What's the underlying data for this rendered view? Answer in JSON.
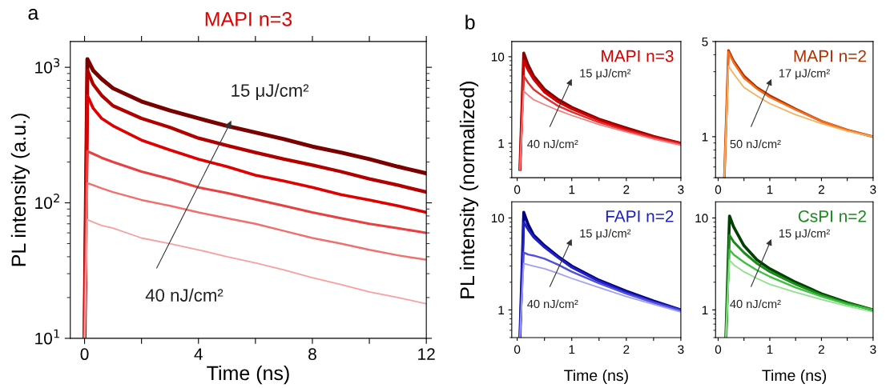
{
  "chart_data": [
    {
      "type": "line",
      "title": "MAPI n=3",
      "xlabel": "Time (ns)",
      "ylabel": "PL intensity (a.u.)",
      "log": "y",
      "xlim": [
        -0.5,
        12
      ],
      "ylim": [
        10,
        1550
      ],
      "xticks": [
        0,
        {
          "value": 2,
          "label": null
        },
        4,
        {
          "value": 6,
          "label": null
        },
        8,
        {
          "value": 10,
          "label": null
        },
        12
      ],
      "yticks": [
        {
          "value": 10,
          "label": "10$^{1}$"
        },
        {
          "value": 100,
          "label": "10$^{2}$"
        },
        {
          "value": 1000,
          "label": "10$^{3}$"
        }
      ],
      "annotations": [
        "a",
        "15 μJ/cm²",
        "40 nJ/cm²"
      ],
      "x": [
        0,
        0.1,
        0.3,
        0.6,
        1,
        2,
        3,
        4,
        5,
        6,
        7,
        8,
        9,
        10,
        11,
        12
      ],
      "series": [
        {
          "color": "#7a0000",
          "values": [
            10,
            1150,
            950,
            820,
            700,
            560,
            480,
            420,
            370,
            330,
            295,
            260,
            235,
            210,
            185,
            165
          ]
        },
        {
          "color": "#b00000",
          "values": [
            10,
            950,
            750,
            620,
            520,
            420,
            360,
            300,
            265,
            235,
            210,
            190,
            170,
            150,
            135,
            120
          ]
        },
        {
          "color": "#e00000",
          "values": [
            10,
            620,
            500,
            420,
            370,
            290,
            245,
            210,
            185,
            160,
            145,
            130,
            115,
            105,
            95,
            85
          ]
        },
        {
          "color": "#e84040",
          "values": [
            10,
            240,
            230,
            215,
            200,
            170,
            150,
            130,
            118,
            106,
            95,
            85,
            77,
            70,
            65,
            60
          ]
        },
        {
          "color": "#f07070",
          "values": [
            10,
            140,
            135,
            128,
            120,
            105,
            95,
            85,
            77,
            70,
            62,
            55,
            50,
            45,
            41,
            38
          ]
        },
        {
          "color": "#f8a0a0",
          "values": [
            10,
            75,
            72,
            68,
            65,
            55,
            50,
            45,
            40,
            36,
            32,
            28,
            25,
            22,
            20,
            18
          ]
        }
      ]
    },
    {
      "type": "line",
      "title": "MAPI n=3",
      "ylabel": "PL intensity (normalized)",
      "log": "y",
      "xlim": [
        -0.1,
        3
      ],
      "ylim": [
        0.4,
        15
      ],
      "xticks": [
        0,
        {
          "value": 0.5,
          "label": null
        },
        1,
        {
          "value": 1.5,
          "label": null
        },
        2,
        {
          "value": 2.5,
          "label": null
        },
        3
      ],
      "yticks": [
        1,
        10
      ],
      "annotations": [
        "b",
        "15 μJ/cm²",
        "40 nJ/cm²"
      ],
      "x": [
        0.05,
        0.12,
        0.2,
        0.3,
        0.5,
        0.75,
        1,
        1.5,
        2,
        2.5,
        3
      ],
      "series": [
        {
          "color": "#8b0000",
          "values": [
            0.5,
            11,
            8,
            6,
            4.2,
            3.2,
            2.6,
            1.9,
            1.5,
            1.2,
            1.0
          ]
        },
        {
          "color": "#d00000",
          "values": [
            0.5,
            9,
            7,
            5.5,
            3.9,
            3.0,
            2.5,
            1.85,
            1.45,
            1.18,
            1.0
          ]
        },
        {
          "color": "#e03030",
          "values": [
            0.5,
            6,
            5,
            4.2,
            3.4,
            2.7,
            2.3,
            1.75,
            1.4,
            1.15,
            0.98
          ]
        },
        {
          "color": "#f08080",
          "values": [
            0.5,
            4,
            3.6,
            3.2,
            2.8,
            2.4,
            2.1,
            1.65,
            1.35,
            1.12,
            0.95
          ]
        }
      ]
    },
    {
      "type": "line",
      "title": "MAPI n=2",
      "log": "y",
      "xlim": [
        -0.05,
        3
      ],
      "ylim": [
        0.5,
        5
      ],
      "xticks": [
        0,
        {
          "value": 0.5,
          "label": null
        },
        1,
        {
          "value": 1.5,
          "label": null
        },
        2,
        {
          "value": 2.5,
          "label": null
        },
        3
      ],
      "yticks": [
        1,
        5
      ],
      "annotations": [
        "17 μJ/cm²",
        "50 nJ/cm²"
      ],
      "x": [
        0.12,
        0.2,
        0.3,
        0.5,
        0.75,
        1,
        1.5,
        2,
        2.5,
        3
      ],
      "series": [
        {
          "color": "#b03000",
          "values": [
            0.5,
            4.3,
            3.6,
            2.8,
            2.3,
            2.0,
            1.6,
            1.3,
            1.12,
            1.0
          ]
        },
        {
          "color": "#f07020",
          "values": [
            0.5,
            4.2,
            3.5,
            2.7,
            2.25,
            1.95,
            1.58,
            1.3,
            1.12,
            1.0
          ]
        },
        {
          "color": "#f8b060",
          "values": [
            0.5,
            3.3,
            2.9,
            2.3,
            2.0,
            1.75,
            1.45,
            1.25,
            1.1,
            1.0
          ]
        }
      ]
    },
    {
      "type": "line",
      "title": "FAPI n=2",
      "xlabel": "Time (ns)",
      "log": "y",
      "xlim": [
        -0.1,
        3
      ],
      "ylim": [
        0.5,
        15
      ],
      "xticks": [
        0,
        {
          "value": 0.5,
          "label": null
        },
        1,
        {
          "value": 1.5,
          "label": null
        },
        2,
        {
          "value": 2.5,
          "label": null
        },
        3
      ],
      "yticks": [
        1,
        10
      ],
      "annotations": [
        "15 μJ/cm²",
        "40 nJ/cm²"
      ],
      "x": [
        0.05,
        0.12,
        0.2,
        0.3,
        0.5,
        0.75,
        1,
        1.5,
        2,
        2.5,
        3
      ],
      "series": [
        {
          "color": "#000080",
          "values": [
            0.5,
            11.5,
            8.5,
            6.5,
            5,
            3.8,
            3,
            2.1,
            1.6,
            1.25,
            1.0
          ]
        },
        {
          "color": "#2020c0",
          "values": [
            0.5,
            9,
            7.5,
            6.2,
            4.8,
            3.7,
            2.9,
            2.05,
            1.55,
            1.22,
            1.0
          ]
        },
        {
          "color": "#5050e0",
          "values": [
            0.5,
            4.2,
            4.0,
            3.9,
            3.6,
            3.1,
            2.6,
            1.95,
            1.5,
            1.2,
            0.98
          ]
        },
        {
          "color": "#a0a0f0",
          "values": [
            0.5,
            3.2,
            3.1,
            3.0,
            2.8,
            2.5,
            2.2,
            1.75,
            1.4,
            1.15,
            0.95
          ]
        }
      ]
    },
    {
      "type": "line",
      "title": "CsPI n=2",
      "xlabel": "Time (ns)",
      "log": "y",
      "xlim": [
        -0.05,
        3
      ],
      "ylim": [
        0.5,
        15
      ],
      "xticks": [
        0,
        {
          "value": 0.5,
          "label": null
        },
        1,
        {
          "value": 1.5,
          "label": null
        },
        2,
        {
          "value": 2.5,
          "label": null
        },
        3
      ],
      "yticks": [
        1,
        10
      ],
      "annotations": [
        "15 μJ/cm²",
        "40 nJ/cm²"
      ],
      "x": [
        0.15,
        0.22,
        0.3,
        0.5,
        0.75,
        1,
        1.5,
        2,
        2.5,
        3
      ],
      "series": [
        {
          "color": "#004000",
          "values": [
            0.5,
            10.5,
            8,
            5,
            3.5,
            2.8,
            2,
            1.5,
            1.2,
            1.0
          ]
        },
        {
          "color": "#1a8a1a",
          "values": [
            0.5,
            6.5,
            5.5,
            4.2,
            3.2,
            2.6,
            1.9,
            1.45,
            1.18,
            1.0
          ]
        },
        {
          "color": "#40c040",
          "values": [
            0.5,
            4.5,
            4,
            3.3,
            2.7,
            2.3,
            1.75,
            1.4,
            1.15,
            1.0
          ]
        },
        {
          "color": "#90e090",
          "values": [
            0.5,
            3.5,
            3.1,
            2.6,
            2.2,
            1.9,
            1.55,
            1.3,
            1.1,
            0.95
          ]
        }
      ]
    }
  ]
}
